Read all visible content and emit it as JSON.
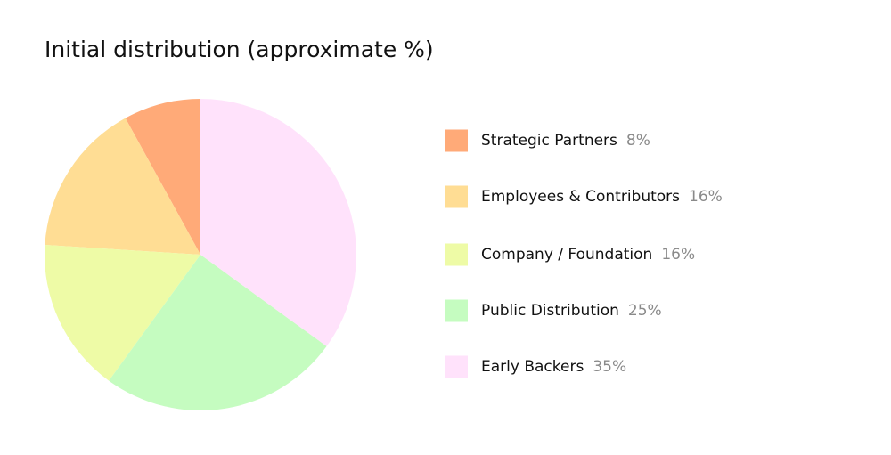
{
  "chart_data": {
    "type": "pie",
    "title": "Initial distribution (approximate %)",
    "categories": [
      "Strategic Partners",
      "Employees & Contributors",
      "Company / Foundation",
      "Public Distribution",
      "Early Backers"
    ],
    "values": [
      8,
      16,
      16,
      25,
      35
    ],
    "value_labels": [
      "8%",
      "16%",
      "16%",
      "25%",
      "35%"
    ],
    "colors": [
      "#ffaa78",
      "#ffdd94",
      "#eefba6",
      "#c5fcc0",
      "#ffe2fb"
    ]
  }
}
